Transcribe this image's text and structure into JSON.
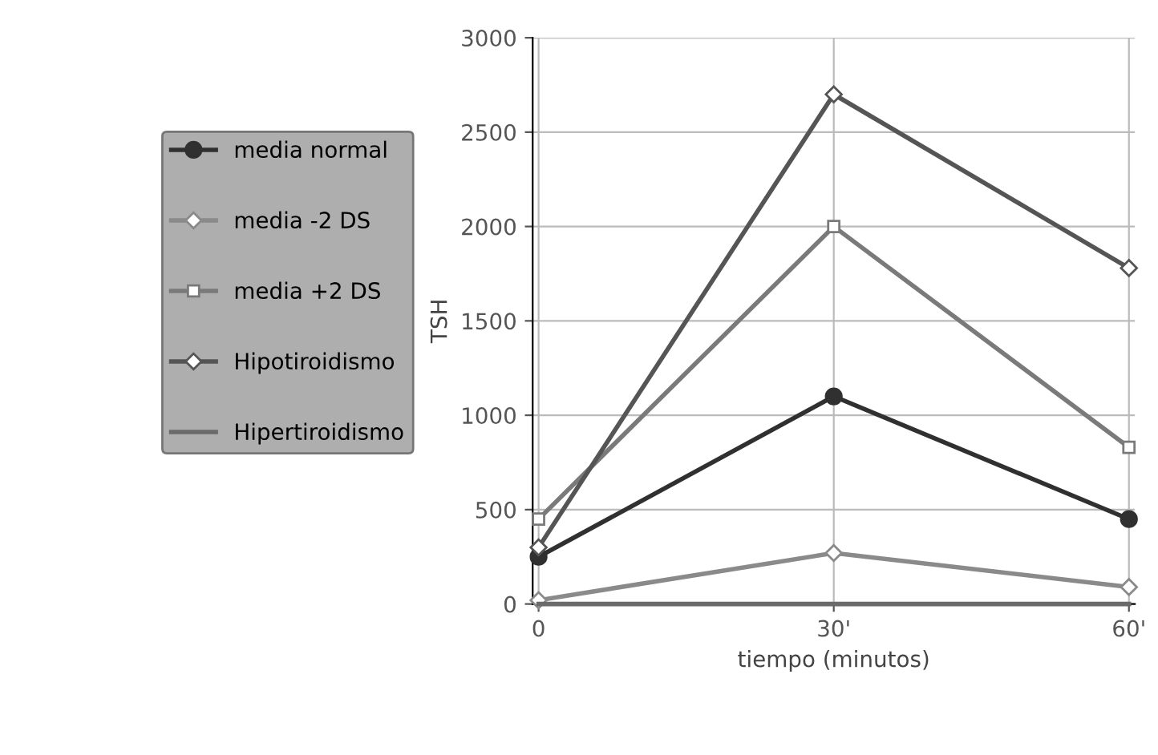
{
  "chart_data": {
    "type": "line",
    "xlabel": "tiempo (minutos)",
    "ylabel": "TSH",
    "categories": [
      "0",
      "30'",
      "60'"
    ],
    "series": [
      {
        "name": "media normal",
        "color": "#303030",
        "values": [
          250,
          1100,
          450
        ],
        "marker": "circle"
      },
      {
        "name": "media -2 DS",
        "color": "#8a8a8a",
        "values": [
          20,
          270,
          90
        ],
        "marker": "diamond"
      },
      {
        "name": "media +2 DS",
        "color": "#7a7a7a",
        "values": [
          450,
          2000,
          830
        ],
        "marker": "square"
      },
      {
        "name": "Hipotiroidismo",
        "color": "#555555",
        "values": [
          300,
          2700,
          1780
        ],
        "marker": "diamond"
      },
      {
        "name": "Hipertiroidismo",
        "color": "#6a6a6a",
        "values": [
          0,
          0,
          0
        ],
        "marker": "none"
      }
    ],
    "ylim": [
      0,
      3000
    ],
    "yticks": [
      0,
      500,
      1000,
      1500,
      2000,
      2500,
      3000
    ],
    "grid": true,
    "legend": "left",
    "line_style": "solid"
  }
}
